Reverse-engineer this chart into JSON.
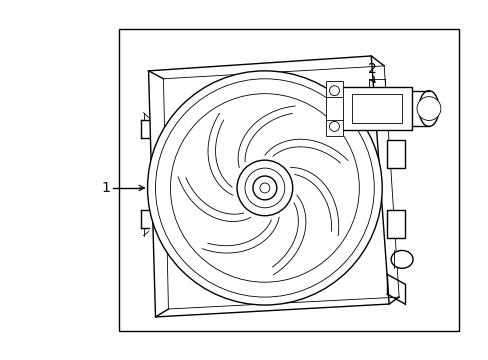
{
  "background_color": "#ffffff",
  "line_color": "#000000",
  "lw": 1.0,
  "tlw": 0.6,
  "fig_width": 4.89,
  "fig_height": 3.6,
  "dpi": 100,
  "label_1": "1",
  "label_2": "2"
}
